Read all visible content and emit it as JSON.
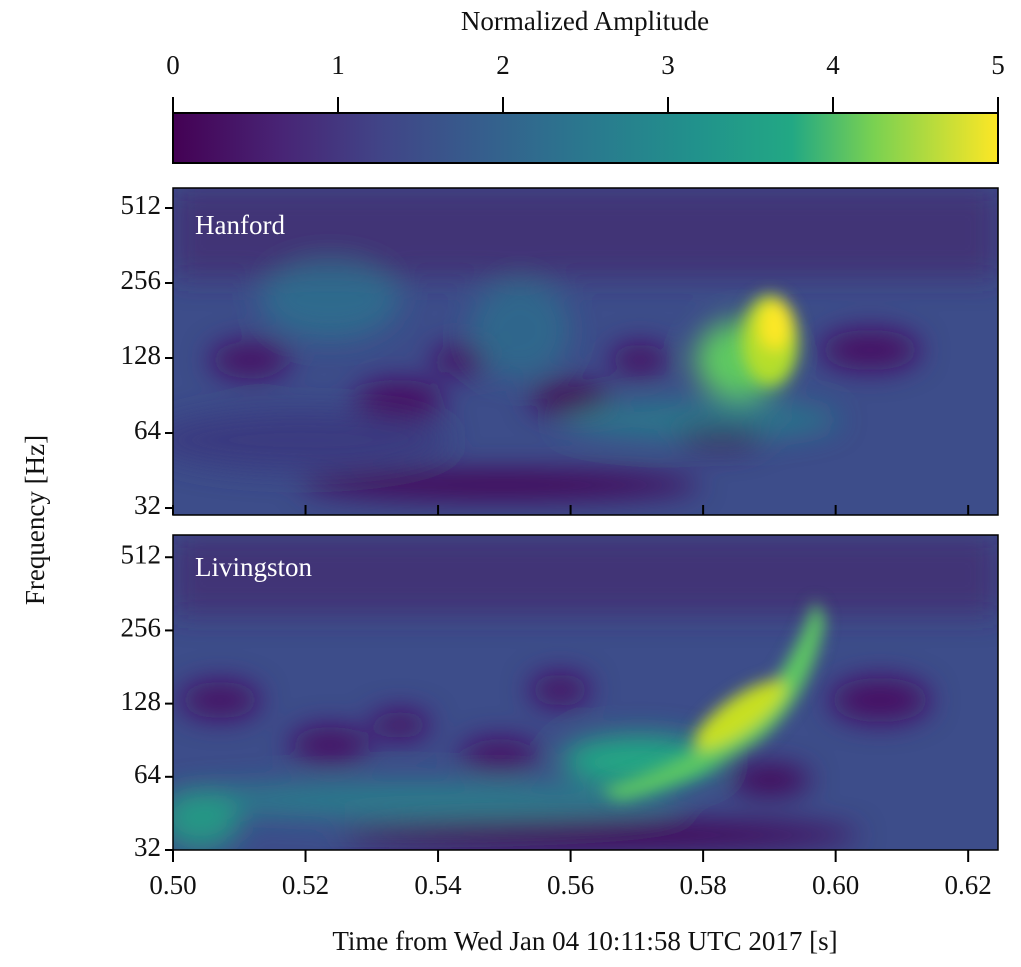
{
  "chart_data": {
    "type": "spectrogram",
    "xlabel": "Time from Wed Jan 04 10:11:58 UTC 2017 [s]",
    "ylabel": "Frequency [Hz]",
    "xlim": [
      0.5,
      0.6245
    ],
    "xticks": [
      {
        "value": 0.5,
        "label": "0.50"
      },
      {
        "value": 0.52,
        "label": "0.52"
      },
      {
        "value": 0.54,
        "label": "0.54"
      },
      {
        "value": 0.56,
        "label": "0.56"
      },
      {
        "value": 0.58,
        "label": "0.58"
      },
      {
        "value": 0.6,
        "label": "0.60"
      },
      {
        "value": 0.62,
        "label": "0.62"
      }
    ],
    "log_y": true,
    "colorbar": {
      "label": "Normalized Amplitude",
      "lim": [
        0,
        5
      ],
      "ticks": [
        0,
        1,
        2,
        3,
        4,
        5
      ],
      "colormap": "viridis"
    },
    "panels": [
      {
        "name": "Hanford",
        "ylim": [
          30,
          616
        ],
        "yticks": [
          32,
          64,
          128,
          256,
          512
        ]
      },
      {
        "name": "Livingston",
        "ylim": [
          32,
          632
        ],
        "yticks": [
          32,
          64,
          128,
          256,
          512
        ]
      }
    ]
  }
}
